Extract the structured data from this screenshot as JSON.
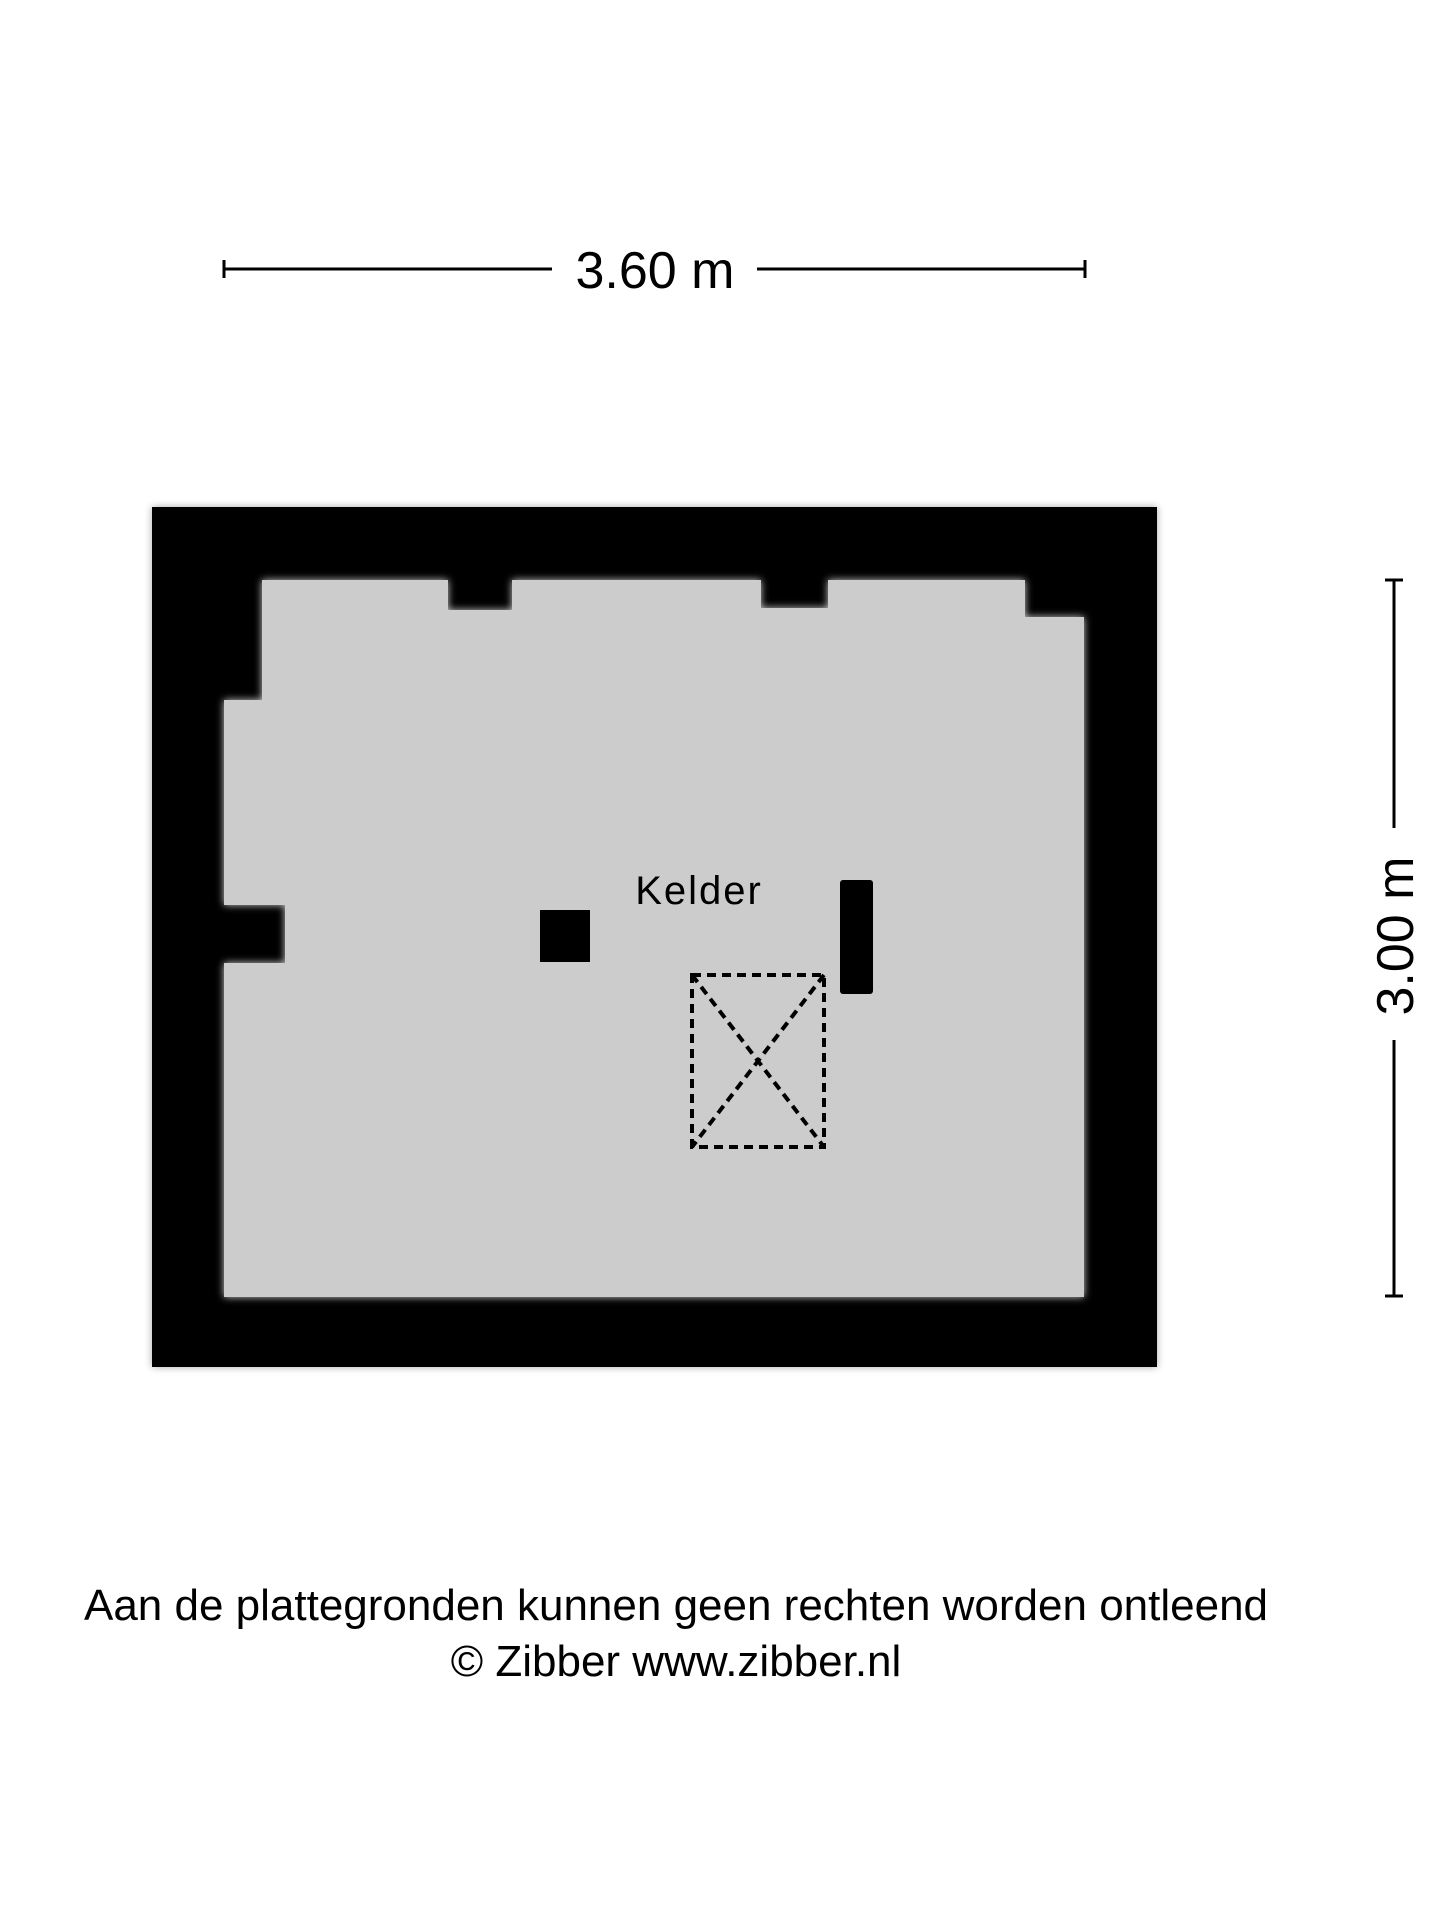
{
  "dimensions": {
    "width_label": "3.60 m",
    "height_label": "3.00 m"
  },
  "rooms": [
    {
      "label": "Kelder"
    }
  ],
  "footer": {
    "disclaimer": "Aan de plattegronden kunnen geen rechten worden ontleend",
    "copyright": "© Zibber www.zibber.nl"
  },
  "colors": {
    "wall": "#000000",
    "floor": "#cccccc",
    "background": "#ffffff"
  },
  "icons": {
    "hatch": "dashed-rectangle-with-cross"
  }
}
